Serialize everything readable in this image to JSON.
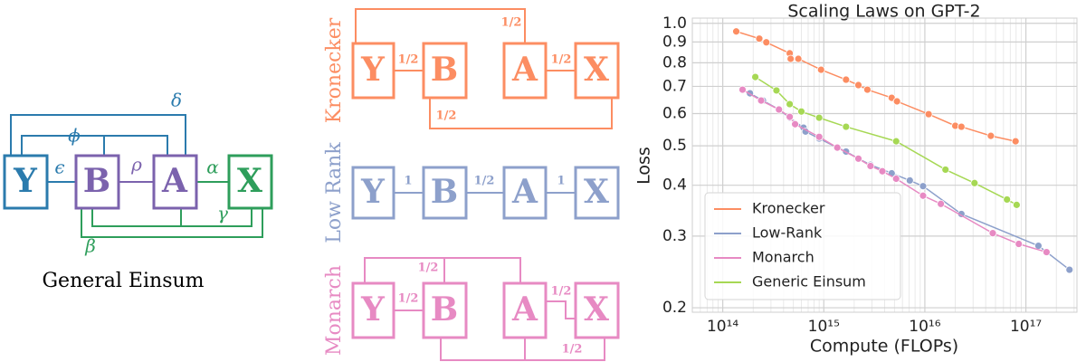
{
  "general_einsum": {
    "nodes": [
      "Y",
      "B",
      "A",
      "X"
    ],
    "edge_labels": [
      "ϵ",
      "ρ",
      "α",
      "δ",
      "ϕ",
      "γ",
      "β"
    ],
    "caption": "General Einsum"
  },
  "panels": [
    {
      "label": "Kronecker",
      "nodes": [
        "Y",
        "B",
        "A",
        "X"
      ],
      "edge_labels": [
        "1/2",
        "1/2",
        "1/2",
        "1/2"
      ]
    },
    {
      "label": "Low Rank",
      "nodes": [
        "Y",
        "B",
        "A",
        "X"
      ],
      "edge_labels": [
        "1",
        "1/2",
        "1"
      ]
    },
    {
      "label": "Monarch",
      "nodes": [
        "Y",
        "B",
        "A",
        "X"
      ],
      "edge_labels": [
        "1/2",
        "1/2",
        "1/2",
        "1/2"
      ]
    }
  ],
  "chart_data": {
    "type": "line",
    "title": "Scaling Laws on GPT-2",
    "x_label": "Compute (FLOPs)",
    "y_label": "Loss",
    "x_log": true,
    "y_log": true,
    "grid": true,
    "minor_grid": true,
    "legend": "lower left",
    "xlim": [
      50000000000000.0,
      3.2e+17
    ],
    "ylim": [
      0.195,
      1.03
    ],
    "xticks": [
      {
        "value": 100000000000000.0,
        "label": "10¹⁴"
      },
      {
        "value": 1000000000000000.0,
        "label": "10¹⁵"
      },
      {
        "value": 1e+16,
        "label": "10¹⁶"
      },
      {
        "value": 1e+17,
        "label": "10¹⁷"
      }
    ],
    "yticks": [
      0.2,
      0.3,
      0.4,
      0.5,
      0.6,
      0.7,
      0.8,
      0.9,
      {
        "value": 1.0,
        "label": "1.0"
      }
    ],
    "series": [
      {
        "name": "Kronecker",
        "color": "#fc8d62",
        "x": [
          136000000000000.0,
          230000000000000.0,
          270000000000000.0,
          460000000000000.0,
          470000000000000.0,
          560000000000000.0,
          940000000000000.0,
          1660000000000000.0,
          2200000000000000.0,
          2700000000000000.0,
          4700000000000000.0,
          5300000000000000.0,
          1.09e+16,
          2e+16,
          2.3e+16,
          4.5e+16,
          7.9e+16
        ],
        "values": [
          0.955,
          0.917,
          0.898,
          0.844,
          0.818,
          0.818,
          0.769,
          0.727,
          0.705,
          0.687,
          0.656,
          0.643,
          0.598,
          0.56,
          0.557,
          0.529,
          0.513
        ]
      },
      {
        "name": "Low-Rank",
        "color": "#8da0cb",
        "x": [
          186000000000000.0,
          250000000000000.0,
          360000000000000.0,
          460000000000000.0,
          630000000000000.0,
          660000000000000.0,
          900000000000000.0,
          1360000000000000.0,
          1660000000000000.0,
          2200000000000000.0,
          2900000000000000.0,
          4700000000000000.0,
          7100000000000000.0,
          9600000000000000.0,
          2.3e+16,
          1.33e+17,
          2.7e+17
        ],
        "values": [
          0.673,
          0.646,
          0.614,
          0.586,
          0.554,
          0.542,
          0.521,
          0.495,
          0.484,
          0.465,
          0.449,
          0.428,
          0.411,
          0.398,
          0.34,
          0.284,
          0.248
        ]
      },
      {
        "name": "Monarch",
        "color": "#e78ac3",
        "x": [
          157000000000000.0,
          240000000000000.0,
          360000000000000.0,
          460000000000000.0,
          520000000000000.0,
          900000000000000.0,
          1360000000000000.0,
          2200000000000000.0,
          2900000000000000.0,
          3800000000000000.0,
          5200000000000000.0,
          9600000000000000.0,
          1.44e+16,
          4.7e+16,
          8.5e+16,
          1.6e+17
        ],
        "values": [
          0.687,
          0.646,
          0.614,
          0.589,
          0.565,
          0.526,
          0.495,
          0.465,
          0.446,
          0.433,
          0.415,
          0.377,
          0.36,
          0.305,
          0.287,
          0.274
        ]
      },
      {
        "name": "Generic Einsum",
        "color": "#a6d854",
        "x": [
          210000000000000.0,
          340000000000000.0,
          460000000000000.0,
          600000000000000.0,
          900000000000000.0,
          1660000000000000.0,
          5200000000000000.0,
          1.6e+16,
          3.1e+16,
          6.5e+16,
          8.1e+16
        ],
        "values": [
          0.738,
          0.684,
          0.633,
          0.607,
          0.586,
          0.557,
          0.513,
          0.437,
          0.405,
          0.369,
          0.358
        ]
      }
    ]
  }
}
